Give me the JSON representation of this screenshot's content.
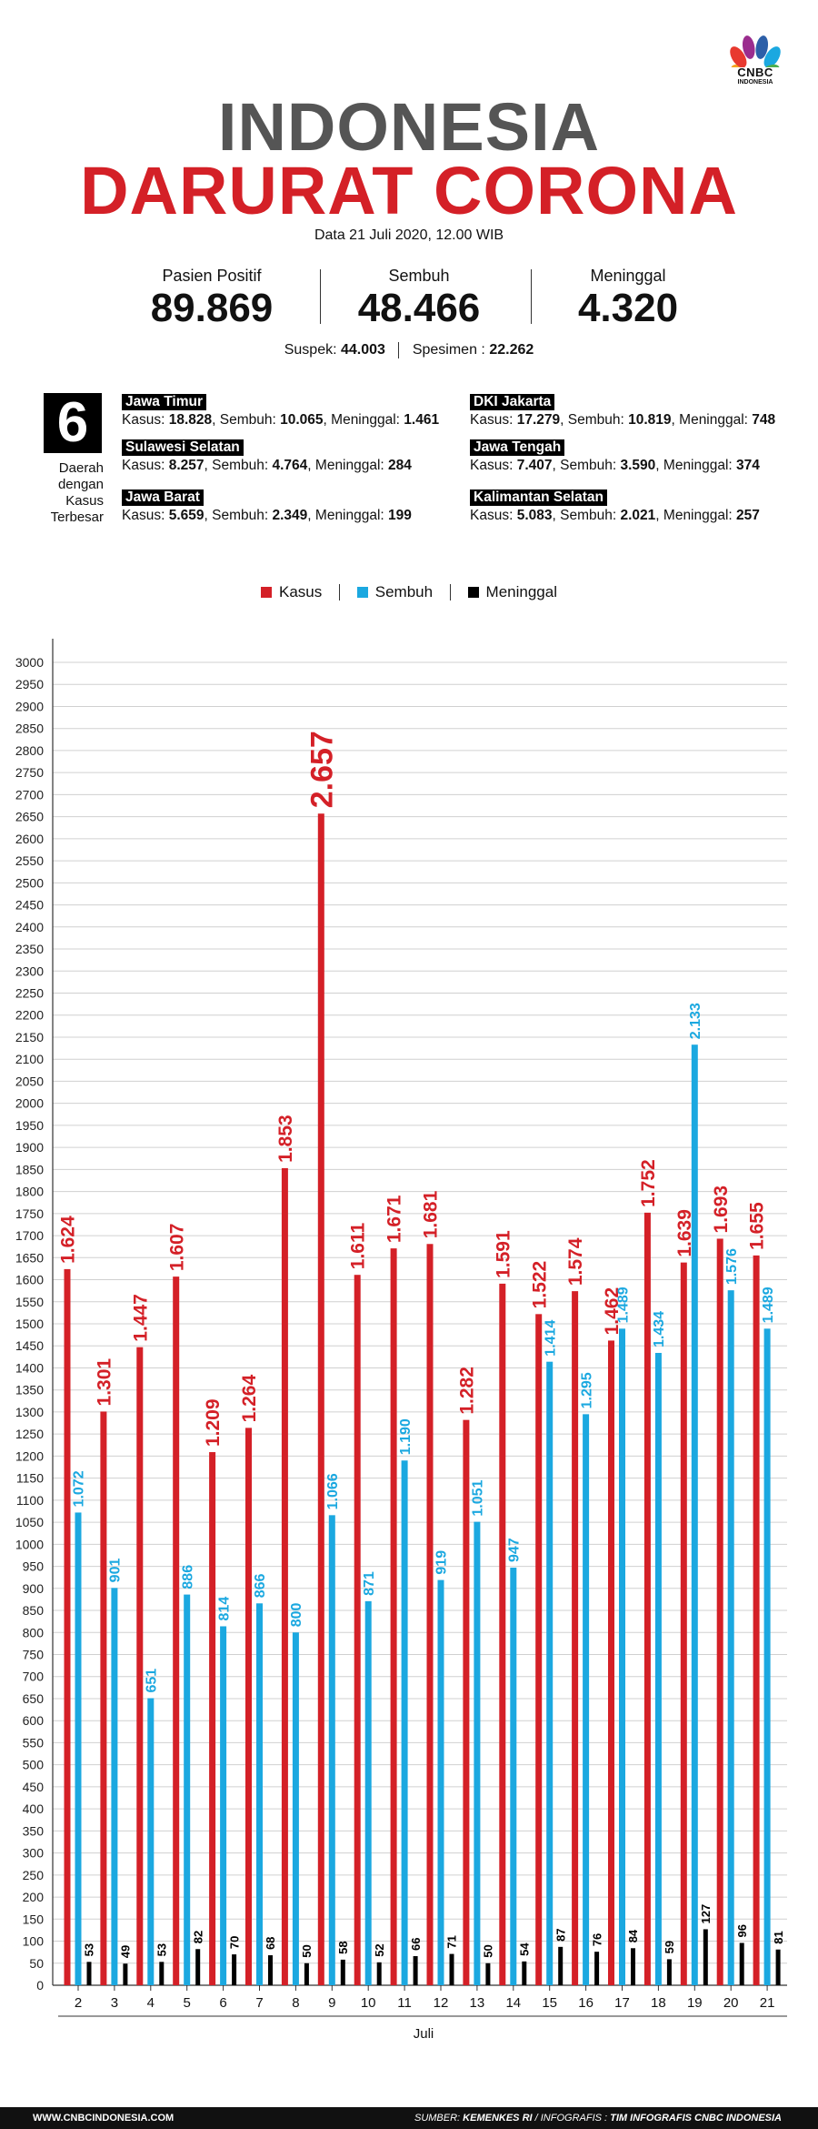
{
  "logo": {
    "name": "CNBC",
    "sub": "INDONESIA"
  },
  "header": {
    "title_line1": "INDONESIA",
    "title_line2": "DARURAT CORONA",
    "date": "Data 21 Juli 2020, 12.00 WIB"
  },
  "stats": [
    {
      "label": "Pasien Positif",
      "value": "89.869"
    },
    {
      "label": "Sembuh",
      "value": "48.466"
    },
    {
      "label": "Meninggal",
      "value": "4.320"
    }
  ],
  "suspek": {
    "label": "Suspek:",
    "value": "44.003"
  },
  "spesimen": {
    "label": "Spesimen :",
    "value": "22.262"
  },
  "regions_box": {
    "count": "6",
    "caption": "Daerah dengan Kasus Terbesar"
  },
  "regions": [
    {
      "name": "Jawa Timur",
      "kasus": "18.828",
      "sembuh": "10.065",
      "meninggal": "1.461"
    },
    {
      "name": "Sulawesi Selatan",
      "kasus": "8.257",
      "sembuh": "4.764",
      "meninggal": "284"
    },
    {
      "name": "Jawa Barat",
      "kasus": "5.659",
      "sembuh": "2.349",
      "meninggal": "199"
    },
    {
      "name": "DKI Jakarta",
      "kasus": "17.279",
      "sembuh": "10.819",
      "meninggal": "748"
    },
    {
      "name": "Jawa Tengah",
      "kasus": "7.407",
      "sembuh": "3.590",
      "meninggal": "374"
    },
    {
      "name": "Kalimantan Selatan",
      "kasus": "5.083",
      "sembuh": "2.021",
      "meninggal": "257"
    }
  ],
  "labels": {
    "kasus": "Kasus:",
    "sembuh": "Sembuh:",
    "meninggal": "Meninggal:"
  },
  "colors": {
    "kasus": "#d42027",
    "sembuh": "#1ba8e0",
    "meninggal": "#000000",
    "title_gray": "#555555"
  },
  "chart_data": {
    "type": "bar",
    "xlabel": "Juli",
    "ylabel": "",
    "ylim": [
      0,
      3000
    ],
    "yticks": [
      0,
      50,
      100,
      150,
      200,
      250,
      300,
      350,
      400,
      450,
      500,
      550,
      600,
      650,
      700,
      750,
      800,
      850,
      900,
      950,
      1000,
      1050,
      1100,
      1150,
      1200,
      1250,
      1300,
      1350,
      1400,
      1450,
      1500,
      1550,
      1600,
      1650,
      1700,
      1750,
      1800,
      1850,
      1900,
      1950,
      2000,
      2050,
      2100,
      2150,
      2200,
      2250,
      2300,
      2350,
      2400,
      2450,
      2500,
      2550,
      2600,
      2650,
      2700,
      2750,
      2800,
      2850,
      2900,
      2950,
      3000
    ],
    "grid": true,
    "legend_position": "top-center",
    "categories": [
      "2",
      "3",
      "4",
      "5",
      "6",
      "7",
      "8",
      "9",
      "10",
      "11",
      "12",
      "13",
      "14",
      "15",
      "16",
      "17",
      "18",
      "19",
      "20",
      "21"
    ],
    "series": [
      {
        "name": "Kasus",
        "color": "#d42027",
        "values": [
          1624,
          1301,
          1447,
          1607,
          1209,
          1264,
          1853,
          2657,
          1611,
          1671,
          1681,
          1282,
          1591,
          1522,
          1574,
          1462,
          1752,
          1639,
          1693,
          1655
        ],
        "labels": [
          "1.624",
          "1.301",
          "1.447",
          "1.607",
          "1.209",
          "1.264",
          "1.853",
          "2.657",
          "1.611",
          "1.671",
          "1.681",
          "1.282",
          "1.591",
          "1.522",
          "1.574",
          "1.462",
          "1.752",
          "1.639",
          "1.693",
          "1.655"
        ]
      },
      {
        "name": "Sembuh",
        "color": "#1ba8e0",
        "values": [
          1072,
          901,
          651,
          886,
          814,
          866,
          800,
          1066,
          871,
          1190,
          919,
          1051,
          947,
          1414,
          1295,
          1489,
          1434,
          2133,
          1576,
          1489
        ],
        "labels": [
          "1.072",
          "901",
          "651",
          "886",
          "814",
          "866",
          "800",
          "1.066",
          "871",
          "1.190",
          "919",
          "1.051",
          "947",
          "1.414",
          "1.295",
          "1.489",
          "1.434",
          "2.133",
          "1.576",
          "1.489"
        ]
      },
      {
        "name": "Meninggal",
        "color": "#000000",
        "values": [
          53,
          49,
          53,
          82,
          70,
          68,
          50,
          58,
          52,
          66,
          71,
          50,
          54,
          87,
          76,
          84,
          59,
          127,
          96,
          81
        ],
        "labels": [
          "53",
          "49",
          "53",
          "82",
          "70",
          "68",
          "50",
          "58",
          "52",
          "66",
          "71",
          "50",
          "54",
          "87",
          "76",
          "84",
          "59",
          "127",
          "96",
          "81"
        ]
      }
    ]
  },
  "footer": {
    "website": "WWW.CNBCINDONESIA.COM",
    "source_label": "SUMBER:",
    "source": "KEMENKES RI",
    "infografis_label": "/ INFOGRAFIS :",
    "infografis": "TIM INFOGRAFIS CNBC INDONESIA"
  }
}
